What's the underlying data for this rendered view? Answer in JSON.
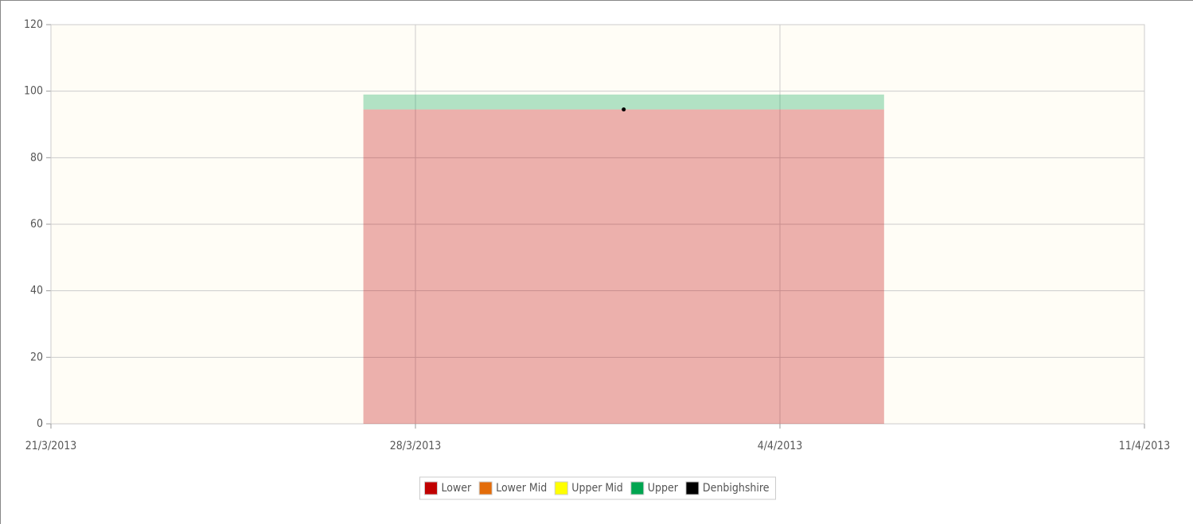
{
  "chart_data": {
    "type": "area",
    "xlim": [
      "21/3/2013",
      "11/4/2013"
    ],
    "xticks": [
      "21/3/2013",
      "28/3/2013",
      "4/4/2013",
      "11/4/2013"
    ],
    "ylim": [
      0,
      120
    ],
    "yticks": [
      0,
      20,
      40,
      60,
      80,
      100,
      120
    ],
    "grid": true,
    "stacked": true,
    "legend": "bottom",
    "series": [
      {
        "name": "Lower",
        "color": "#c00000",
        "x": [
          "27/3/2013",
          "6/4/2013"
        ],
        "values": [
          94.5,
          94.5
        ]
      },
      {
        "name": "Lower Mid",
        "color": "#e36c0a",
        "x": [
          "27/3/2013",
          "6/4/2013"
        ],
        "values": [
          0,
          0
        ]
      },
      {
        "name": "Upper Mid",
        "color": "#ffff00",
        "x": [
          "27/3/2013",
          "6/4/2013"
        ],
        "values": [
          0,
          0
        ]
      },
      {
        "name": "Upper",
        "color": "#00a550",
        "x": [
          "27/3/2013",
          "6/4/2013"
        ],
        "values": [
          4.5,
          4.5
        ]
      },
      {
        "name": "Denbighshire",
        "color": "#000000",
        "type": "point",
        "x": [
          "1/4/2013"
        ],
        "values": [
          94.5
        ]
      }
    ]
  }
}
